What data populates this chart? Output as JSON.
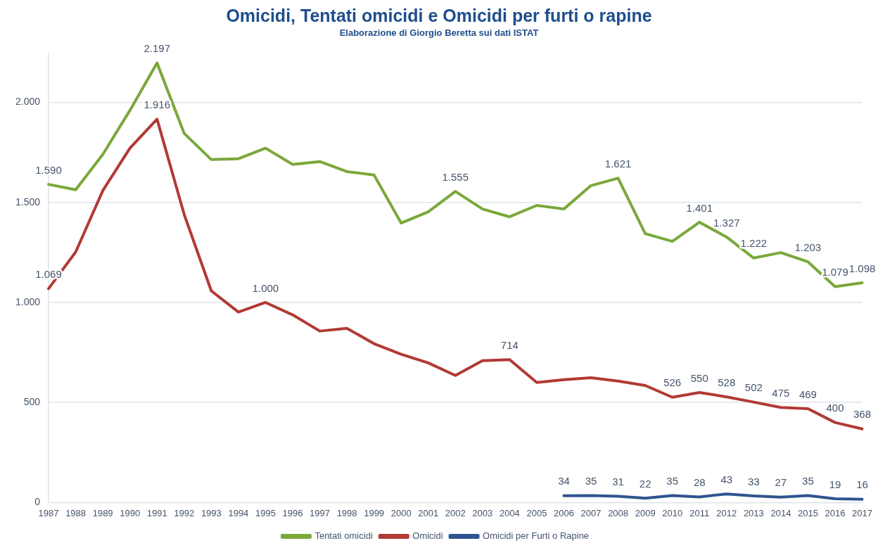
{
  "chart_data": {
    "type": "line",
    "title": "Omicidi, Tentati omicidi e Omicidi per furti o rapine",
    "subtitle": "Elaborazione di Giorgio Beretta sui dati ISTAT",
    "categories": [
      "1987",
      "1988",
      "1989",
      "1990",
      "1991",
      "1992",
      "1993",
      "1994",
      "1995",
      "1996",
      "1997",
      "1998",
      "1999",
      "2000",
      "2001",
      "2002",
      "2003",
      "2004",
      "2005",
      "2006",
      "2007",
      "2008",
      "2009",
      "2010",
      "2011",
      "2012",
      "2013",
      "2014",
      "2015",
      "2016",
      "2017"
    ],
    "series": [
      {
        "name": "Tentati omicidi",
        "color": "#7aa83a",
        "values": [
          1590,
          1563,
          1740,
          1960,
          2197,
          1845,
          1714,
          1718,
          1771,
          1690,
          1704,
          1654,
          1637,
          1397,
          1453,
          1555,
          1467,
          1428,
          1485,
          1467,
          1584,
          1621,
          1344,
          1305,
          1401,
          1327,
          1222,
          1249,
          1203,
          1079,
          1098
        ],
        "value_labels": [
          "1.590",
          null,
          null,
          null,
          "2.197",
          null,
          null,
          null,
          null,
          null,
          null,
          null,
          null,
          null,
          null,
          "1.555",
          null,
          null,
          null,
          null,
          null,
          "1.621",
          null,
          null,
          "1.401",
          "1.327",
          "1.222",
          null,
          "1.203",
          "1.079",
          "1.098"
        ]
      },
      {
        "name": "Omicidi",
        "color": "#b23a34",
        "values": [
          1069,
          1252,
          1559,
          1771,
          1916,
          1440,
          1058,
          952,
          1000,
          938,
          857,
          871,
          794,
          741,
          698,
          635,
          709,
          714,
          600,
          614,
          624,
          607,
          585,
          526,
          550,
          528,
          502,
          475,
          469,
          400,
          368
        ],
        "value_labels": [
          "1.069",
          null,
          null,
          null,
          "1.916",
          null,
          null,
          null,
          "1.000",
          null,
          null,
          null,
          null,
          null,
          null,
          null,
          null,
          "714",
          null,
          null,
          null,
          null,
          null,
          "526",
          "550",
          "528",
          "502",
          "475",
          "469",
          "400",
          "368"
        ]
      },
      {
        "name": "Omicidi per Furti o Rapine",
        "color": "#2f5590",
        "values": [
          null,
          null,
          null,
          null,
          null,
          null,
          null,
          null,
          null,
          null,
          null,
          null,
          null,
          null,
          null,
          null,
          null,
          null,
          null,
          34,
          35,
          31,
          22,
          35,
          28,
          43,
          33,
          27,
          35,
          19,
          16
        ],
        "value_labels": [
          null,
          null,
          null,
          null,
          null,
          null,
          null,
          null,
          null,
          null,
          null,
          null,
          null,
          null,
          null,
          null,
          null,
          null,
          null,
          "34",
          "35",
          "31",
          "22",
          "35",
          "28",
          "43",
          "33",
          "27",
          "35",
          "19",
          "16"
        ]
      }
    ],
    "ylim": [
      0,
      2250
    ],
    "yticks": [
      0,
      500,
      {
        "value": 1000,
        "label": "1.000"
      },
      {
        "value": 1500,
        "label": "1.500"
      },
      {
        "value": 2000,
        "label": "2.000"
      }
    ],
    "grid": "y",
    "legend": "bottom",
    "marker": "none",
    "line_style": "solid"
  }
}
